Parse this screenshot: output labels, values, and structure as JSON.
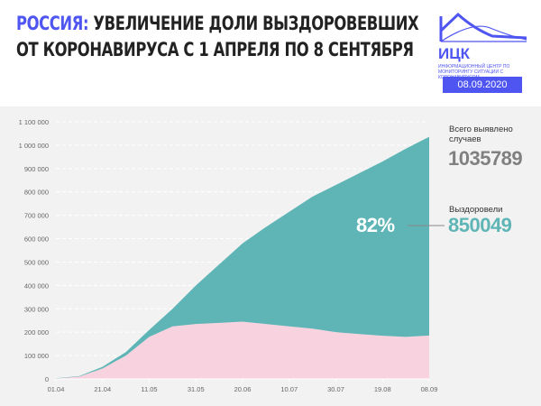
{
  "header": {
    "title_highlight": "РОССИЯ:",
    "title_line1": " УВЕЛИЧЕНИЕ ДОЛИ ВЫЗДОРОВЕВШИХ",
    "title_line2": "ОТ КОРОНАВИРУСА С 1 АПРЕЛЯ ПО 8 СЕНТЯБРЯ",
    "logo_name": "ИЦК",
    "logo_subtitle": "Информационный центр по мониторингу ситуации с коронавирусом",
    "date": "08.09.2020"
  },
  "summary": {
    "total_label": "Всего выявлено случаев",
    "total_value": "1035789",
    "recovered_label": "Выздоровели",
    "recovered_value": "850049",
    "recovered_share": "82%"
  },
  "colors": {
    "accent": "#4f55f0",
    "recovered": "#5fb5b6",
    "active": "#f8d2de",
    "total_text": "#808080",
    "background": "#f2f2f2"
  },
  "chart_data": {
    "type": "area",
    "stacked": true,
    "x": [
      "01.04",
      "11.04",
      "21.04",
      "01.05",
      "11.05",
      "21.05",
      "31.05",
      "10.06",
      "20.06",
      "30.06",
      "10.07",
      "20.07",
      "30.07",
      "09.08",
      "19.08",
      "29.08",
      "08.09"
    ],
    "series": [
      {
        "color": "#f8d2de",
        "values": [
          2000,
          10000,
          45000,
          100000,
          180000,
          225000,
          235000,
          240000,
          245000,
          235000,
          225000,
          215000,
          200000,
          192000,
          185000,
          180000,
          185740
        ]
      },
      {
        "color": "#5fb5b6",
        "values": [
          1000,
          2000,
          7000,
          15000,
          30000,
          75000,
          165000,
          250000,
          335000,
          415000,
          490000,
          565000,
          630000,
          688000,
          745000,
          805000,
          850049
        ]
      }
    ],
    "x_ticks": [
      "01.04",
      "21.04",
      "11.05",
      "31.05",
      "20.06",
      "10.07",
      "30.07",
      "19.08",
      "08.09"
    ],
    "y_ticks": [
      "0",
      "100 000",
      "200 000",
      "300 000",
      "400 000",
      "500 000",
      "600 000",
      "700 000",
      "800 000",
      "900 000",
      "1 000 000",
      "1 100 000"
    ],
    "ylim": [
      0,
      1100000
    ],
    "grid": "horizontal dashed"
  }
}
